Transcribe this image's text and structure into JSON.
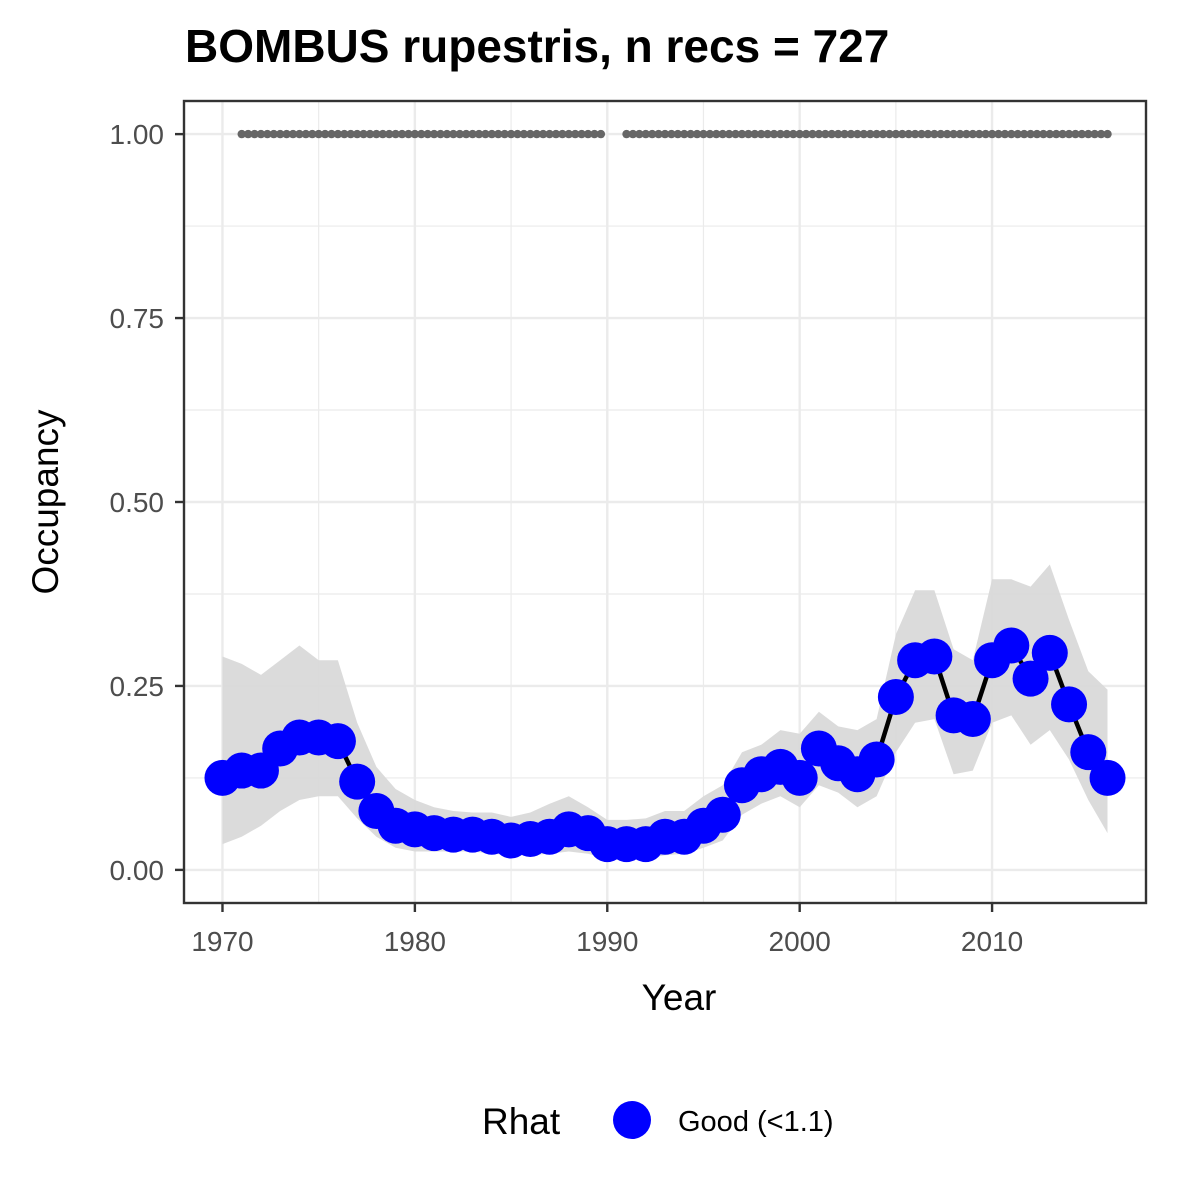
{
  "chart_data": {
    "type": "line",
    "title": "BOMBUS rupestris, n recs = 727",
    "xlabel": "Year",
    "ylabel": "Occupancy",
    "xlim": [
      1968,
      2018
    ],
    "ylim": [
      -0.045,
      1.045
    ],
    "x_ticks": [
      1970,
      1980,
      1990,
      2000,
      2010
    ],
    "x_tick_labels": [
      "1970",
      "1980",
      "1990",
      "2000",
      "2010"
    ],
    "y_ticks": [
      0,
      0.25,
      0.5,
      0.75,
      1.0
    ],
    "y_tick_labels": [
      "0.00",
      "0.25",
      "0.50",
      "0.75",
      "1.00"
    ],
    "grid": true,
    "legend": {
      "title": "Rhat",
      "position": "bottom",
      "entries": [
        {
          "label": "Good (<1.1)",
          "color": "#0000ff"
        }
      ]
    },
    "colors": {
      "point": "#0000ff",
      "line": "#000000",
      "ribbon": "#d9d9d9",
      "records": "#666666",
      "grid": "#ebebeb",
      "panel_border": "#333333"
    },
    "series": [
      {
        "name": "Occupancy",
        "x": [
          1970,
          1971,
          1972,
          1973,
          1974,
          1975,
          1976,
          1977,
          1978,
          1979,
          1980,
          1981,
          1982,
          1983,
          1984,
          1985,
          1986,
          1987,
          1988,
          1989,
          1990,
          1991,
          1992,
          1993,
          1994,
          1995,
          1996,
          1997,
          1998,
          1999,
          2000,
          2001,
          2002,
          2003,
          2004,
          2005,
          2006,
          2007,
          2008,
          2009,
          2010,
          2011,
          2012,
          2013,
          2014,
          2015,
          2016
        ],
        "y": [
          0.125,
          0.135,
          0.135,
          0.165,
          0.18,
          0.18,
          0.175,
          0.12,
          0.08,
          0.06,
          0.055,
          0.05,
          0.048,
          0.048,
          0.045,
          0.04,
          0.042,
          0.045,
          0.055,
          0.05,
          0.035,
          0.035,
          0.035,
          0.045,
          0.045,
          0.06,
          0.075,
          0.115,
          0.13,
          0.14,
          0.125,
          0.165,
          0.145,
          0.13,
          0.15,
          0.235,
          0.285,
          0.29,
          0.21,
          0.205,
          0.285,
          0.305,
          0.26,
          0.295,
          0.225,
          0.16,
          0.125
        ],
        "lower": [
          0.035,
          0.045,
          0.06,
          0.08,
          0.095,
          0.1,
          0.1,
          0.07,
          0.045,
          0.03,
          0.025,
          0.025,
          0.025,
          0.025,
          0.022,
          0.02,
          0.02,
          0.022,
          0.025,
          0.022,
          0.015,
          0.015,
          0.015,
          0.02,
          0.022,
          0.03,
          0.04,
          0.075,
          0.09,
          0.1,
          0.085,
          0.115,
          0.105,
          0.085,
          0.1,
          0.16,
          0.2,
          0.205,
          0.13,
          0.135,
          0.2,
          0.21,
          0.17,
          0.19,
          0.15,
          0.095,
          0.05
        ],
        "upper": [
          0.29,
          0.28,
          0.265,
          0.285,
          0.305,
          0.285,
          0.285,
          0.2,
          0.14,
          0.11,
          0.095,
          0.085,
          0.08,
          0.078,
          0.078,
          0.072,
          0.078,
          0.09,
          0.1,
          0.085,
          0.068,
          0.068,
          0.07,
          0.08,
          0.08,
          0.1,
          0.115,
          0.16,
          0.17,
          0.19,
          0.185,
          0.215,
          0.195,
          0.19,
          0.205,
          0.32,
          0.38,
          0.38,
          0.3,
          0.285,
          0.395,
          0.395,
          0.385,
          0.415,
          0.34,
          0.27,
          0.245
        ]
      },
      {
        "name": "Records",
        "x": [
          1971,
          1972,
          1973,
          1974,
          1975,
          1976,
          1977,
          1978,
          1979,
          1980,
          1981,
          1982,
          1983,
          1984,
          1985,
          1986,
          1987,
          1988,
          1989,
          1991,
          1992,
          1993,
          1994,
          1995,
          1996,
          1997,
          1998,
          1999,
          2000,
          2001,
          2002,
          2003,
          2004,
          2005,
          2006,
          2007,
          2008,
          2009,
          2010,
          2011,
          2012,
          2013,
          2014,
          2015,
          2016
        ],
        "y": [
          1,
          1,
          1,
          1,
          1,
          1,
          1,
          1,
          1,
          1,
          1,
          1,
          1,
          1,
          1,
          1,
          1,
          1,
          1,
          1,
          1,
          1,
          1,
          1,
          1,
          1,
          1,
          1,
          1,
          1,
          1,
          1,
          1,
          1,
          1,
          1,
          1,
          1,
          1,
          1,
          1,
          1,
          1,
          1,
          1
        ]
      }
    ]
  }
}
